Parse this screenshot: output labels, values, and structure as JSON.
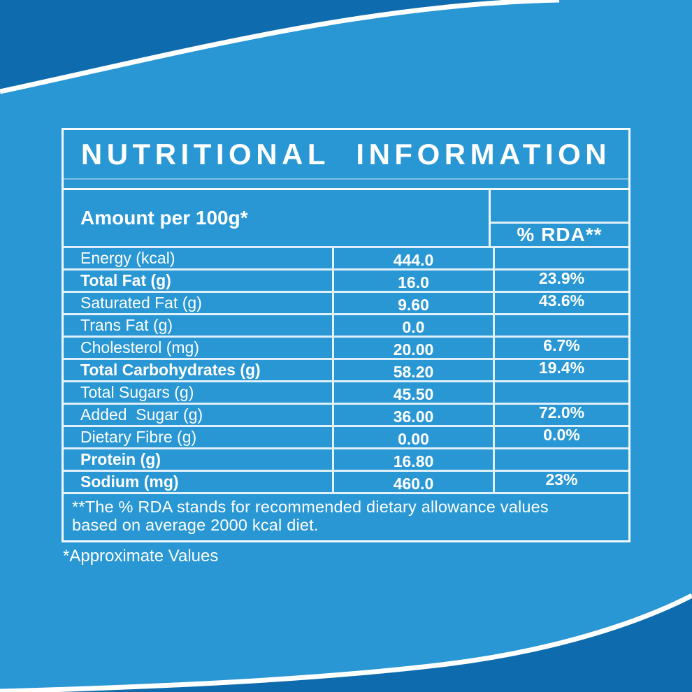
{
  "theme": {
    "bg_light": "#2997d4",
    "bg_dark": "#0e6cae",
    "curve_white": "#ffffff",
    "text_white": "#ffffff"
  },
  "label": {
    "title": "NUTRITIONAL INFORMATION",
    "header": {
      "amount_label": "Amount per 100g*",
      "rda_label": "% RDA**"
    },
    "rows": [
      {
        "name": "Energy (kcal)",
        "value": "444.0",
        "rda": "",
        "bold": false
      },
      {
        "name": "Total Fat (g)",
        "value": "16.0",
        "rda": "23.9%",
        "bold": true
      },
      {
        "name": "Saturated Fat (g)",
        "value": "9.60",
        "rda": "43.6%",
        "bold": false
      },
      {
        "name": "Trans Fat (g)",
        "value": "0.0",
        "rda": "",
        "bold": false
      },
      {
        "name": "Cholesterol (mg)",
        "value": "20.00",
        "rda": "6.7%",
        "bold": false
      },
      {
        "name": "Total Carbohydrates (g)",
        "value": "58.20",
        "rda": "19.4%",
        "bold": true
      },
      {
        "name": "Total Sugars (g)",
        "value": "45.50",
        "rda": "",
        "bold": false
      },
      {
        "name": "Added  Sugar (g)",
        "value": "36.00",
        "rda": "72.0%",
        "bold": false
      },
      {
        "name": "Dietary Fibre (g)",
        "value": "0.00",
        "rda": "0.0%",
        "bold": false
      },
      {
        "name": "Protein (g)",
        "value": "16.80",
        "rda": "",
        "bold": true
      },
      {
        "name": "Sodium (mg)",
        "value": "460.0",
        "rda": "23%",
        "bold": true
      }
    ],
    "footnote_lines": [
      "**The % RDA stands for recommended dietary allowance values",
      "based on average 2000 kcal diet."
    ],
    "approx_note": "*Approximate Values"
  }
}
